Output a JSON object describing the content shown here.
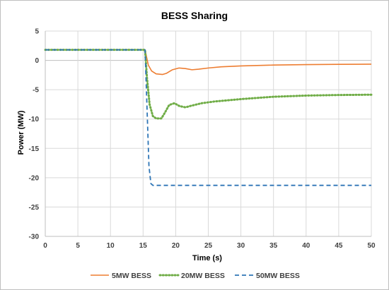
{
  "chart_data": {
    "type": "line",
    "title": "BESS Sharing",
    "xlabel": "Time (s)",
    "ylabel": "Power (MW)",
    "xlim": [
      0,
      50
    ],
    "ylim": [
      -30,
      5
    ],
    "xticks": [
      0,
      5,
      10,
      15,
      20,
      25,
      30,
      35,
      40,
      45,
      50
    ],
    "yticks": [
      5,
      0,
      -5,
      -10,
      -15,
      -20,
      -25,
      -30
    ],
    "grid": true,
    "legend_position": "bottom",
    "series": [
      {
        "name": "5MW BESS",
        "color": "#ED7D31",
        "dash": "solid",
        "points": [
          [
            0,
            1.8
          ],
          [
            15,
            1.8
          ],
          [
            15.3,
            1.8
          ],
          [
            15.8,
            -0.8
          ],
          [
            16.3,
            -1.8
          ],
          [
            17,
            -2.3
          ],
          [
            18,
            -2.4
          ],
          [
            18.6,
            -2.2
          ],
          [
            19.5,
            -1.6
          ],
          [
            20.5,
            -1.3
          ],
          [
            21.5,
            -1.4
          ],
          [
            22.5,
            -1.6
          ],
          [
            23.5,
            -1.5
          ],
          [
            25,
            -1.3
          ],
          [
            27,
            -1.1
          ],
          [
            30,
            -0.95
          ],
          [
            35,
            -0.8
          ],
          [
            40,
            -0.72
          ],
          [
            45,
            -0.68
          ],
          [
            50,
            -0.65
          ]
        ]
      },
      {
        "name": "20MW BESS",
        "color": "#70AD47",
        "dash": "dotted",
        "points": [
          [
            0,
            1.8
          ],
          [
            15,
            1.8
          ],
          [
            15.3,
            1.8
          ],
          [
            15.6,
            -3
          ],
          [
            16,
            -7.5
          ],
          [
            16.5,
            -9.5
          ],
          [
            17,
            -9.9
          ],
          [
            17.8,
            -9.9
          ],
          [
            18.3,
            -9.0
          ],
          [
            19,
            -7.6
          ],
          [
            19.8,
            -7.3
          ],
          [
            20.6,
            -7.8
          ],
          [
            21.5,
            -8.0
          ],
          [
            22.5,
            -7.7
          ],
          [
            24,
            -7.3
          ],
          [
            26,
            -7.0
          ],
          [
            30,
            -6.6
          ],
          [
            35,
            -6.2
          ],
          [
            40,
            -6.0
          ],
          [
            45,
            -5.9
          ],
          [
            50,
            -5.85
          ]
        ]
      },
      {
        "name": "50MW BESS",
        "color": "#2E75B6",
        "dash": "dashed",
        "points": [
          [
            0,
            1.8
          ],
          [
            15,
            1.8
          ],
          [
            15.3,
            1.8
          ],
          [
            15.6,
            -8
          ],
          [
            15.9,
            -18
          ],
          [
            16.2,
            -21
          ],
          [
            16.5,
            -21.3
          ],
          [
            50,
            -21.3
          ]
        ]
      }
    ]
  }
}
